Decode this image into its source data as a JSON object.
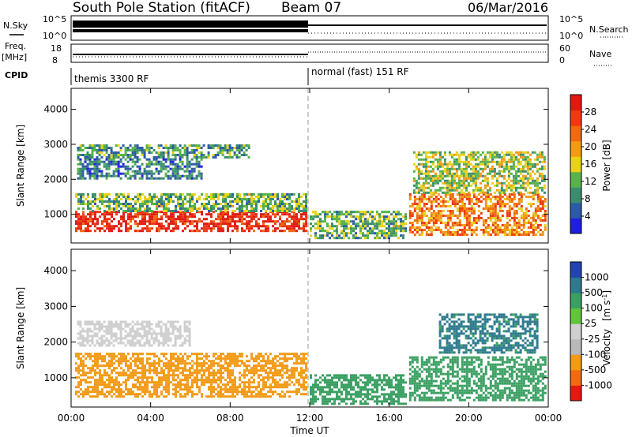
{
  "header": {
    "title": "South Pole Station (fitACF)",
    "beam": "Beam 07",
    "date": "06/Mar/2016"
  },
  "strips": {
    "nsky_label": "N.Sky",
    "nsky_ticks": [
      "10^5",
      "10^0"
    ],
    "nsearch_label": "N.Search",
    "nsearch_ticks": [
      "10^5",
      "10^0"
    ],
    "freq_label_1": "Freq.",
    "freq_label_2": "[MHz]",
    "freq_ticks": [
      "18",
      "8"
    ],
    "nave_label": "Nave",
    "nave_ticks": [
      "60",
      "0"
    ],
    "cpid_label": "CPID",
    "cpid_segments": [
      "themis 3300 RF",
      "normal (fast) 151 RF"
    ]
  },
  "colors": {
    "power_scale": [
      "#1f1fe0",
      "#2d5aa8",
      "#3a8e6e",
      "#57b24a",
      "#e8d21b",
      "#f39a16",
      "#f06a12",
      "#ee3a0f",
      "#e01a10"
    ],
    "velocity_scale": [
      "#e01a10",
      "#f06a12",
      "#f39a16",
      "#b9b9b9",
      "#cfcfcf",
      "#5fc63a",
      "#3aa062",
      "#2d7a8e",
      "#2244b0"
    ]
  },
  "chart_data": [
    {
      "type": "heatmap",
      "name": "power-panel",
      "xlabel": "Time UT",
      "ylabel": "Slant Range [km]",
      "x_ticks": [
        "00:00",
        "04:00",
        "08:00",
        "12:00",
        "16:00",
        "20:00",
        "00:00"
      ],
      "y_ticks": [
        1000,
        2000,
        3000,
        4000
      ],
      "xlim": [
        0,
        24
      ],
      "ylim": [
        180,
        4600
      ],
      "colorbar_label": "Power [dB]",
      "colorbar_ticks": [
        "28",
        "24",
        "20",
        "16",
        "12",
        "8",
        "4"
      ],
      "colorbar_range": [
        0,
        32
      ],
      "regions": [
        {
          "t": [
            0.2,
            11.8
          ],
          "r": [
            500,
            1100
          ],
          "level": 29
        },
        {
          "t": [
            0.2,
            11.8
          ],
          "r": [
            1100,
            1600
          ],
          "level": 12
        },
        {
          "t": [
            0.3,
            6.5
          ],
          "r": [
            2000,
            2600
          ],
          "level": 8
        },
        {
          "t": [
            0.3,
            9.0
          ],
          "r": [
            2600,
            3000
          ],
          "level": 10
        },
        {
          "t": [
            12.0,
            16.8
          ],
          "r": [
            300,
            1100
          ],
          "level": 12
        },
        {
          "t": [
            17.0,
            23.9
          ],
          "r": [
            400,
            1600
          ],
          "level": 22
        },
        {
          "t": [
            17.2,
            23.8
          ],
          "r": [
            1600,
            2800
          ],
          "level": 14
        }
      ]
    },
    {
      "type": "heatmap",
      "name": "velocity-panel",
      "xlabel": "Time UT",
      "ylabel": "Slant Range [km]",
      "x_ticks": [
        "00:00",
        "04:00",
        "08:00",
        "12:00",
        "16:00",
        "20:00",
        "00:00"
      ],
      "y_ticks": [
        1000,
        2000,
        3000,
        4000
      ],
      "xlim": [
        0,
        24
      ],
      "ylim": [
        180,
        4600
      ],
      "colorbar_label": "Velocity [m s-1]",
      "colorbar_label_main": "Velocity",
      "colorbar_label_unit": "[m s",
      "colorbar_label_exp": "-1",
      "colorbar_label_end": "]",
      "colorbar_ticks": [
        "1000",
        "500",
        "100",
        "25",
        "-25",
        "-100",
        "-500",
        "-1000"
      ],
      "regions": [
        {
          "t": [
            0.2,
            11.8
          ],
          "r": [
            500,
            1700
          ],
          "level": -200
        },
        {
          "t": [
            0.3,
            6.0
          ],
          "r": [
            1900,
            2600
          ],
          "level": 0
        },
        {
          "t": [
            12.0,
            16.8
          ],
          "r": [
            300,
            1100
          ],
          "level": 200
        },
        {
          "t": [
            17.0,
            23.8
          ],
          "r": [
            400,
            1600
          ],
          "level": 300
        },
        {
          "t": [
            18.5,
            23.5
          ],
          "r": [
            1700,
            2800
          ],
          "level": 700
        }
      ]
    }
  ]
}
